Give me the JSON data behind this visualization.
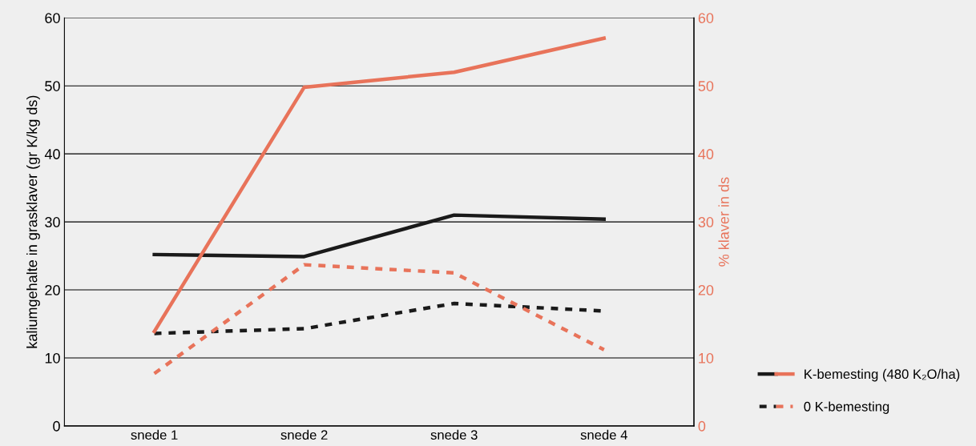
{
  "chart_data": {
    "type": "line",
    "categories": [
      "snede 1",
      "snede 2",
      "snede 3",
      "snede 4"
    ],
    "ylabel": "kaliumgehalte in grasklaver (gr K/kg ds)",
    "y2label": "% klaver in ds",
    "ylim": [
      0,
      60
    ],
    "yticks": [
      0,
      10,
      20,
      30,
      40,
      50,
      60
    ],
    "y2lim": [
      0,
      60
    ],
    "y2ticks": [
      0,
      10,
      20,
      30,
      40,
      50,
      60
    ],
    "grid": "y",
    "legend": "right",
    "marker": "none",
    "series": [
      {
        "name": "K-bemesting (480 K₂O/ha)",
        "color": "#1a1a1a",
        "line_style": "solid",
        "values": [
          25.2,
          24.9,
          31.0,
          30.4
        ]
      },
      {
        "color": "#e8735a",
        "line_style": "solid",
        "axis": "y2",
        "values": [
          13.9,
          49.8,
          52.0,
          57.0
        ]
      },
      {
        "name": "0 K-bemesting",
        "color": "#1a1a1a",
        "line_style": "dashed",
        "values": [
          13.6,
          14.3,
          18.0,
          16.9
        ]
      },
      {
        "color": "#e8735a",
        "line_style": "dashed",
        "axis": "y2",
        "values": [
          7.7,
          23.7,
          22.5,
          11.2
        ]
      }
    ]
  }
}
